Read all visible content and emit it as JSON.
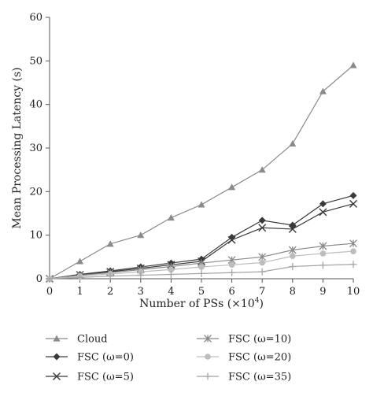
{
  "chart_data": {
    "type": "line",
    "xlabel": "Number of PSs (×10",
    "xlabel_sup": "4",
    "xlabel_end": ")",
    "ylabel": "Mean Processing Latency (s)",
    "xlim": [
      0,
      10
    ],
    "ylim": [
      0,
      60
    ],
    "x": [
      0,
      1,
      2,
      3,
      4,
      5,
      6,
      7,
      8,
      9,
      10
    ],
    "x_ticks": [
      "0",
      "1",
      "2",
      "3",
      "4",
      "5",
      "6",
      "7",
      "8",
      "9",
      "10"
    ],
    "y_ticks": [
      "0",
      "10",
      "20",
      "30",
      "40",
      "50",
      "60"
    ],
    "grid": false,
    "legend_placement": "bottom",
    "series": [
      {
        "name": "Cloud",
        "marker": "triangle",
        "color": "#8a8a8a",
        "values": [
          0,
          4,
          8,
          10,
          14,
          17,
          21,
          25,
          31,
          43,
          49
        ]
      },
      {
        "name": "FSC (ω=0)",
        "marker": "diamond",
        "color": "#3a3a3a",
        "values": [
          0,
          1,
          1.8,
          2.7,
          3.6,
          4.5,
          9.5,
          13.4,
          12.3,
          17.2,
          19.1
        ]
      },
      {
        "name": "FSC (ω=5)",
        "marker": "x",
        "color": "#3a3a3a",
        "values": [
          0,
          0.9,
          1.6,
          2.4,
          3.2,
          4.0,
          8.9,
          11.7,
          11.4,
          15.3,
          17.2
        ]
      },
      {
        "name": "FSC (ω=10)",
        "marker": "asterisk",
        "color": "#8a8a8a",
        "values": [
          0,
          0.8,
          1.4,
          2.1,
          2.8,
          3.6,
          4.3,
          5.0,
          6.6,
          7.5,
          8.1
        ]
      },
      {
        "name": "FSC (ω=20)",
        "marker": "circle",
        "color": "#bdbdbd",
        "values": [
          0,
          0.6,
          1.1,
          1.6,
          2.1,
          2.7,
          3.2,
          3.7,
          5.2,
          5.8,
          6.3
        ]
      },
      {
        "name": "FSC (ω=35)",
        "marker": "plus",
        "color": "#a5a5a5",
        "values": [
          0,
          0.3,
          0.6,
          0.8,
          1.0,
          1.2,
          1.4,
          1.6,
          2.8,
          3.1,
          3.3
        ]
      }
    ]
  }
}
